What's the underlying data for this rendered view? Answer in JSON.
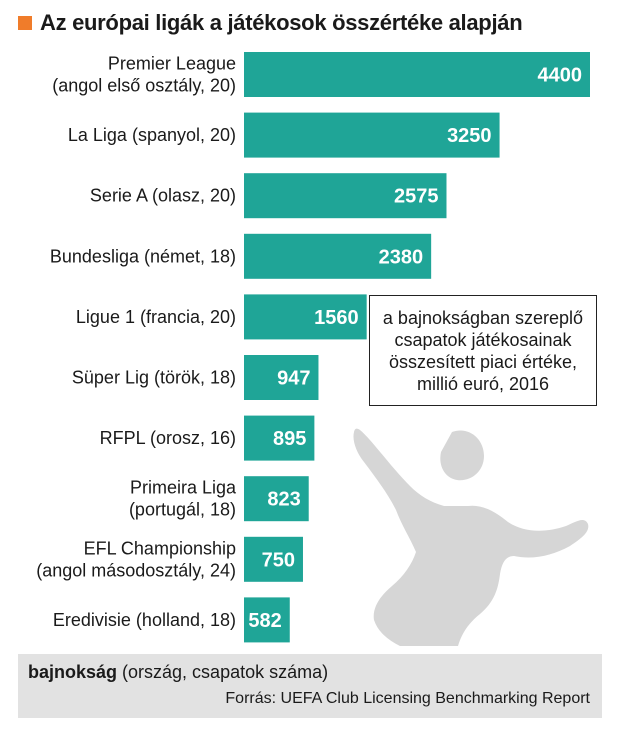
{
  "header": {
    "title": "Az európai ligák a játékosok összértéke alapján"
  },
  "colors": {
    "bar": "#1fa597",
    "accent": "#f07c2a",
    "footer_bg": "#e2e2e2",
    "silhouette": "#d6d6d6"
  },
  "chart_data": {
    "type": "bar",
    "orientation": "horizontal",
    "categories": [
      [
        "Premier League",
        "(angol első osztály, 20)"
      ],
      [
        "La Liga (spanyol, 20)"
      ],
      [
        "Serie A (olasz, 20)"
      ],
      [
        "Bundesliga (német, 18)"
      ],
      [
        "Ligue 1 (francia, 20)"
      ],
      [
        "Süper Lig (török, 18)"
      ],
      [
        "RFPL (orosz, 16)"
      ],
      [
        "Primeira Liga",
        "(portugál, 18)"
      ],
      [
        "EFL Championship",
        "(angol másodosztály, 24)"
      ],
      [
        "Eredivisie (holland, 18)"
      ]
    ],
    "values": [
      4400,
      3250,
      2575,
      2380,
      1560,
      947,
      895,
      823,
      750,
      582
    ],
    "value_labels": [
      "4400",
      "3250",
      "2575",
      "2380",
      "1560",
      "947",
      "895",
      "823",
      "750",
      "582"
    ],
    "xlim": [
      0,
      4400
    ],
    "grid": false,
    "legend": "none"
  },
  "note": {
    "text": "a bajnokságban szereplő csapatok játékosainak összesített piaci értéke, millió euró, 2016"
  },
  "footer": {
    "legend_bold": "bajnokság",
    "legend_rest": " (ország, csapatok száma)",
    "source": "Forrás: UEFA Club Licensing Benchmarking Report"
  }
}
